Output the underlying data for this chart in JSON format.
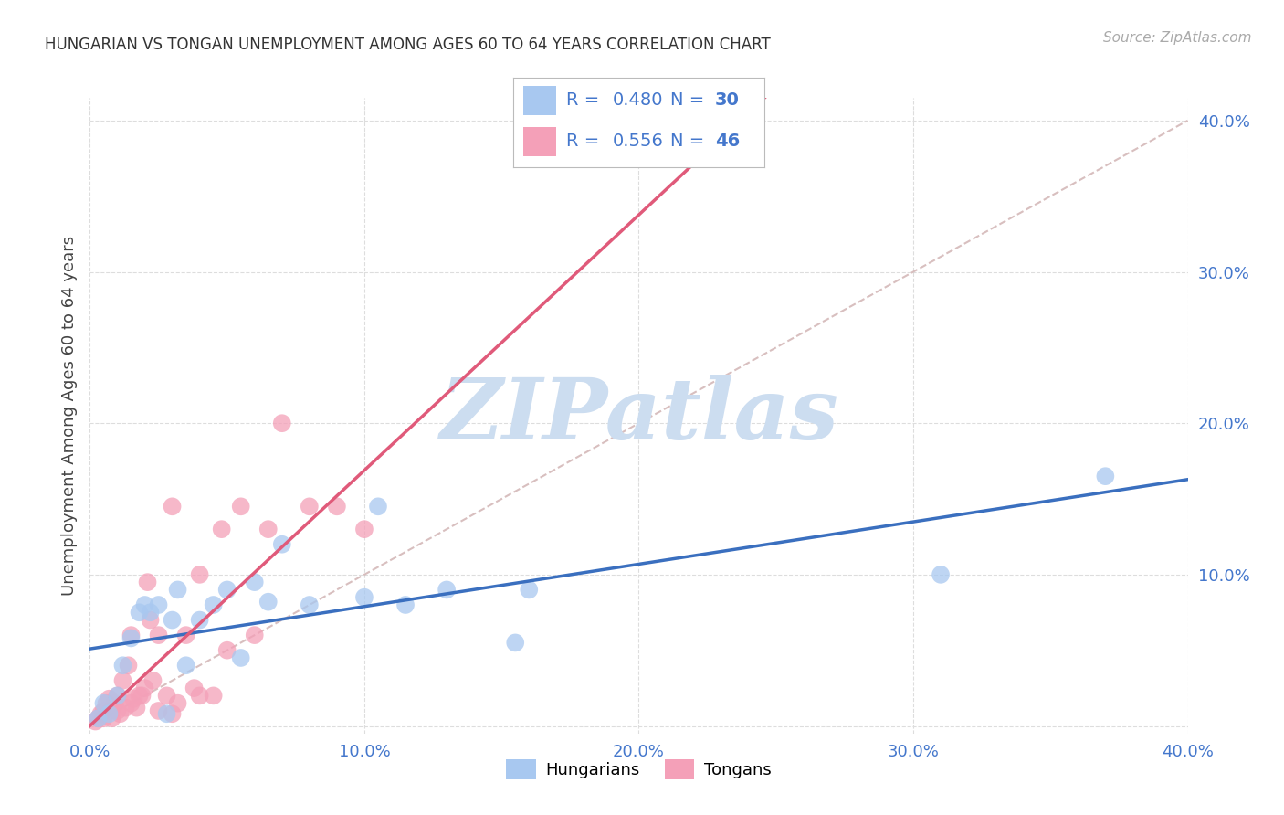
{
  "title": "HUNGARIAN VS TONGAN UNEMPLOYMENT AMONG AGES 60 TO 64 YEARS CORRELATION CHART",
  "source": "Source: ZipAtlas.com",
  "ylabel": "Unemployment Among Ages 60 to 64 years",
  "xlim": [
    0.0,
    0.4
  ],
  "ylim": [
    -0.005,
    0.415
  ],
  "xtick_vals": [
    0.0,
    0.1,
    0.2,
    0.3,
    0.4
  ],
  "ytick_vals": [
    0.0,
    0.1,
    0.2,
    0.3,
    0.4
  ],
  "xticklabels": [
    "0.0%",
    "10.0%",
    "20.0%",
    "30.0%",
    "40.0%"
  ],
  "yticklabels": [
    "",
    "10.0%",
    "20.0%",
    "30.0%",
    "40.0%"
  ],
  "hungarian_color": "#a8c8f0",
  "tongan_color": "#f4a0b8",
  "hungarian_R": 0.48,
  "hungarian_N": 30,
  "tongan_R": 0.556,
  "tongan_N": 46,
  "blue_line_color": "#3a6fbf",
  "pink_line_color": "#e05a7a",
  "diagonal_color": "#d4b8b8",
  "legend_text_color": "#4477cc",
  "watermark": "ZIPatlas",
  "watermark_color": "#ccddf0",
  "tick_color": "#4477cc",
  "background_color": "#ffffff",
  "grid_color": "#dddddd",
  "hungarian_x": [
    0.003,
    0.005,
    0.007,
    0.01,
    0.012,
    0.015,
    0.018,
    0.02,
    0.022,
    0.025,
    0.028,
    0.03,
    0.032,
    0.035,
    0.04,
    0.045,
    0.05,
    0.055,
    0.06,
    0.065,
    0.07,
    0.08,
    0.1,
    0.105,
    0.115,
    0.13,
    0.155,
    0.16,
    0.31,
    0.37
  ],
  "hungarian_y": [
    0.005,
    0.015,
    0.008,
    0.02,
    0.04,
    0.058,
    0.075,
    0.08,
    0.075,
    0.08,
    0.008,
    0.07,
    0.09,
    0.04,
    0.07,
    0.08,
    0.09,
    0.045,
    0.095,
    0.082,
    0.12,
    0.08,
    0.085,
    0.145,
    0.08,
    0.09,
    0.055,
    0.09,
    0.1,
    0.165
  ],
  "tongan_x": [
    0.002,
    0.003,
    0.004,
    0.005,
    0.005,
    0.006,
    0.007,
    0.008,
    0.008,
    0.009,
    0.01,
    0.01,
    0.011,
    0.012,
    0.013,
    0.014,
    0.015,
    0.015,
    0.016,
    0.017,
    0.018,
    0.019,
    0.02,
    0.021,
    0.022,
    0.023,
    0.025,
    0.025,
    0.028,
    0.03,
    0.03,
    0.032,
    0.035,
    0.038,
    0.04,
    0.04,
    0.045,
    0.048,
    0.05,
    0.055,
    0.06,
    0.065,
    0.07,
    0.08,
    0.09,
    0.1
  ],
  "tongan_y": [
    0.003,
    0.005,
    0.008,
    0.005,
    0.01,
    0.015,
    0.018,
    0.005,
    0.01,
    0.015,
    0.01,
    0.02,
    0.008,
    0.03,
    0.012,
    0.04,
    0.015,
    0.06,
    0.018,
    0.012,
    0.02,
    0.02,
    0.025,
    0.095,
    0.07,
    0.03,
    0.01,
    0.06,
    0.02,
    0.008,
    0.145,
    0.015,
    0.06,
    0.025,
    0.02,
    0.1,
    0.02,
    0.13,
    0.05,
    0.145,
    0.06,
    0.13,
    0.2,
    0.145,
    0.145,
    0.13
  ]
}
